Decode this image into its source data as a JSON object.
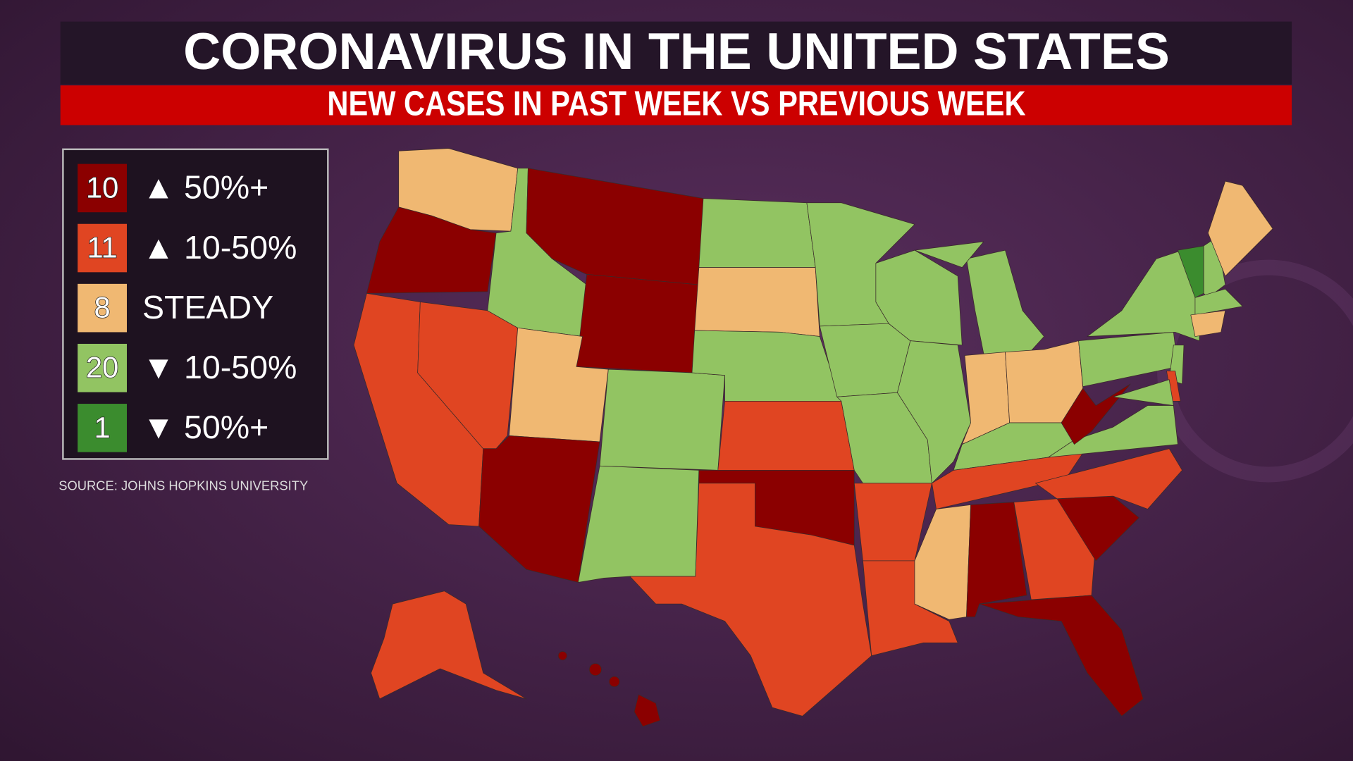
{
  "header": {
    "title": "CORONAVIRUS IN THE UNITED STATES",
    "subtitle": "NEW CASES IN PAST WEEK VS PREVIOUS WEEK"
  },
  "legend": {
    "items": [
      {
        "count": 10,
        "label": "▲ 50%+",
        "color": "#8b0000"
      },
      {
        "count": 11,
        "label": "▲ 10-50%",
        "color": "#e04522"
      },
      {
        "count": 8,
        "label": "STEADY",
        "color": "#f0b872"
      },
      {
        "count": 20,
        "label": "▼ 10-50%",
        "color": "#92c462"
      },
      {
        "count": 1,
        "label": "▼ 50%+",
        "color": "#3b8c2e"
      }
    ]
  },
  "source": "SOURCE: JOHNS HOPKINS UNIVERSITY"
}
